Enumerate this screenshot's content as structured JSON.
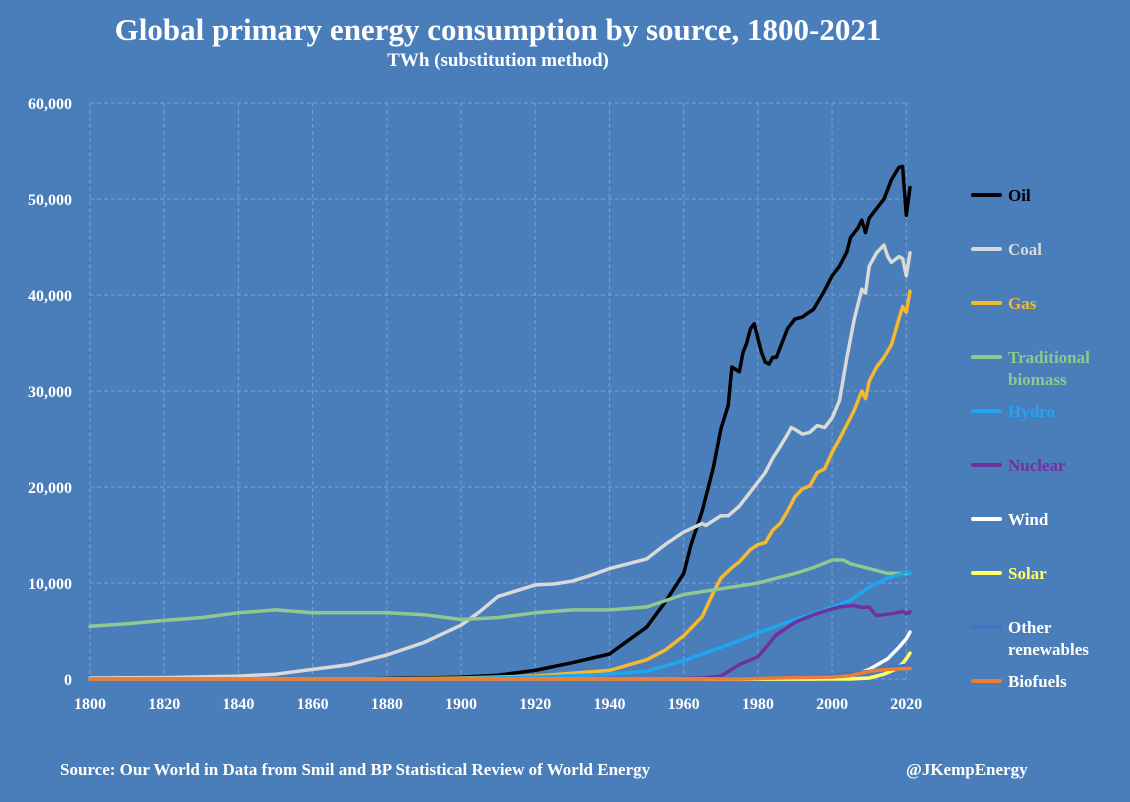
{
  "title": "Global primary energy consumption by source, 1800-2021",
  "subtitle": "TWh (substitution method)",
  "source": "Source: Our World in Data from Smil and BP Statistical Review of World Energy",
  "handle": "@JKempEnergy",
  "colors": {
    "background": "#4a7ebb",
    "grid": "#7aa0d2",
    "text": "#ffffff"
  },
  "chart_data": {
    "type": "line",
    "xlim": [
      1800,
      2021
    ],
    "ylim": [
      0,
      60000
    ],
    "x_ticks": [
      1800,
      1820,
      1840,
      1860,
      1880,
      1900,
      1920,
      1940,
      1960,
      1980,
      2000,
      2020
    ],
    "y_ticks": [
      0,
      10000,
      20000,
      30000,
      40000,
      50000,
      60000
    ],
    "y_tick_labels": [
      "0",
      "10,000",
      "20,000",
      "30,000",
      "40,000",
      "50,000",
      "60,000"
    ],
    "grid": true,
    "legend_position": "right",
    "series": [
      {
        "name": "Oil",
        "legend_lines": [
          "Oil"
        ],
        "color": "#000000",
        "label_color": "#000000",
        "points": [
          [
            1800,
            0
          ],
          [
            1870,
            0
          ],
          [
            1880,
            50
          ],
          [
            1890,
            100
          ],
          [
            1900,
            200
          ],
          [
            1910,
            400
          ],
          [
            1920,
            900
          ],
          [
            1930,
            1700
          ],
          [
            1940,
            2600
          ],
          [
            1945,
            4000
          ],
          [
            1950,
            5400
          ],
          [
            1955,
            8000
          ],
          [
            1960,
            11000
          ],
          [
            1962,
            14000
          ],
          [
            1965,
            17500
          ],
          [
            1968,
            22000
          ],
          [
            1970,
            26000
          ],
          [
            1972,
            28500
          ],
          [
            1973,
            32500
          ],
          [
            1975,
            32000
          ],
          [
            1976,
            34000
          ],
          [
            1977,
            35000
          ],
          [
            1978,
            36500
          ],
          [
            1979,
            37000
          ],
          [
            1980,
            35500
          ],
          [
            1981,
            34000
          ],
          [
            1982,
            33000
          ],
          [
            1983,
            32800
          ],
          [
            1984,
            33500
          ],
          [
            1985,
            33500
          ],
          [
            1986,
            34500
          ],
          [
            1988,
            36500
          ],
          [
            1990,
            37500
          ],
          [
            1992,
            37700
          ],
          [
            1993,
            38000
          ],
          [
            1995,
            38500
          ],
          [
            1998,
            40500
          ],
          [
            2000,
            42000
          ],
          [
            2002,
            43000
          ],
          [
            2004,
            44500
          ],
          [
            2005,
            46000
          ],
          [
            2007,
            47000
          ],
          [
            2008,
            47800
          ],
          [
            2009,
            46500
          ],
          [
            2010,
            48000
          ],
          [
            2012,
            49000
          ],
          [
            2014,
            50000
          ],
          [
            2016,
            52000
          ],
          [
            2018,
            53300
          ],
          [
            2019,
            53400
          ],
          [
            2020,
            48300
          ],
          [
            2021,
            51200
          ]
        ]
      },
      {
        "name": "Coal",
        "legend_lines": [
          "Coal"
        ],
        "color": "#d9d9d9",
        "label_color": "#d9d9d9",
        "points": [
          [
            1800,
            100
          ],
          [
            1820,
            150
          ],
          [
            1840,
            300
          ],
          [
            1850,
            500
          ],
          [
            1860,
            1000
          ],
          [
            1870,
            1500
          ],
          [
            1880,
            2500
          ],
          [
            1890,
            3800
          ],
          [
            1900,
            5600
          ],
          [
            1905,
            7000
          ],
          [
            1910,
            8600
          ],
          [
            1915,
            9200
          ],
          [
            1920,
            9800
          ],
          [
            1925,
            9900
          ],
          [
            1930,
            10200
          ],
          [
            1935,
            10800
          ],
          [
            1940,
            11500
          ],
          [
            1945,
            12000
          ],
          [
            1950,
            12500
          ],
          [
            1955,
            14000
          ],
          [
            1960,
            15300
          ],
          [
            1965,
            16200
          ],
          [
            1966,
            16000
          ],
          [
            1968,
            16500
          ],
          [
            1970,
            17000
          ],
          [
            1972,
            17000
          ],
          [
            1975,
            18000
          ],
          [
            1978,
            19500
          ],
          [
            1980,
            20500
          ],
          [
            1982,
            21500
          ],
          [
            1984,
            23000
          ],
          [
            1986,
            24200
          ],
          [
            1988,
            25500
          ],
          [
            1989,
            26200
          ],
          [
            1990,
            26000
          ],
          [
            1992,
            25500
          ],
          [
            1994,
            25700
          ],
          [
            1996,
            26400
          ],
          [
            1998,
            26200
          ],
          [
            2000,
            27200
          ],
          [
            2002,
            29000
          ],
          [
            2004,
            33500
          ],
          [
            2006,
            37500
          ],
          [
            2008,
            40600
          ],
          [
            2009,
            40200
          ],
          [
            2010,
            43000
          ],
          [
            2012,
            44400
          ],
          [
            2014,
            45200
          ],
          [
            2015,
            44000
          ],
          [
            2016,
            43400
          ],
          [
            2018,
            44000
          ],
          [
            2019,
            43800
          ],
          [
            2020,
            42000
          ],
          [
            2021,
            44400
          ]
        ]
      },
      {
        "name": "Gas",
        "legend_lines": [
          "Gas"
        ],
        "color": "#f5b92e",
        "label_color": "#f5b92e",
        "points": [
          [
            1800,
            0
          ],
          [
            1880,
            0
          ],
          [
            1900,
            100
          ],
          [
            1920,
            300
          ],
          [
            1940,
            900
          ],
          [
            1950,
            2000
          ],
          [
            1955,
            3000
          ],
          [
            1960,
            4500
          ],
          [
            1965,
            6500
          ],
          [
            1968,
            9000
          ],
          [
            1970,
            10500
          ],
          [
            1973,
            11600
          ],
          [
            1975,
            12200
          ],
          [
            1978,
            13500
          ],
          [
            1980,
            14000
          ],
          [
            1982,
            14200
          ],
          [
            1984,
            15500
          ],
          [
            1986,
            16200
          ],
          [
            1988,
            17500
          ],
          [
            1990,
            19000
          ],
          [
            1992,
            19800
          ],
          [
            1994,
            20100
          ],
          [
            1996,
            21500
          ],
          [
            1998,
            21900
          ],
          [
            2000,
            23600
          ],
          [
            2002,
            25000
          ],
          [
            2004,
            26500
          ],
          [
            2006,
            28000
          ],
          [
            2008,
            30000
          ],
          [
            2009,
            29200
          ],
          [
            2010,
            31000
          ],
          [
            2012,
            32500
          ],
          [
            2014,
            33500
          ],
          [
            2016,
            34800
          ],
          [
            2018,
            37500
          ],
          [
            2019,
            38800
          ],
          [
            2020,
            38200
          ],
          [
            2021,
            40400
          ]
        ]
      },
      {
        "name": "Traditional biomass",
        "legend_lines": [
          "Traditional",
          "biomass"
        ],
        "color": "#8fc98f",
        "label_color": "#8fc98f",
        "points": [
          [
            1800,
            5500
          ],
          [
            1810,
            5750
          ],
          [
            1820,
            6100
          ],
          [
            1830,
            6400
          ],
          [
            1840,
            6900
          ],
          [
            1850,
            7200
          ],
          [
            1860,
            6900
          ],
          [
            1870,
            6900
          ],
          [
            1880,
            6900
          ],
          [
            1890,
            6700
          ],
          [
            1900,
            6200
          ],
          [
            1910,
            6400
          ],
          [
            1920,
            6900
          ],
          [
            1930,
            7200
          ],
          [
            1940,
            7200
          ],
          [
            1950,
            7500
          ],
          [
            1960,
            8800
          ],
          [
            1970,
            9400
          ],
          [
            1980,
            10000
          ],
          [
            1990,
            11000
          ],
          [
            1995,
            11600
          ],
          [
            2000,
            12400
          ],
          [
            2003,
            12400
          ],
          [
            2005,
            12000
          ],
          [
            2010,
            11500
          ],
          [
            2015,
            11000
          ],
          [
            2021,
            11000
          ]
        ]
      },
      {
        "name": "Hydro",
        "legend_lines": [
          "Hydro"
        ],
        "color": "#1ea7f0",
        "label_color": "#1ea7f0",
        "points": [
          [
            1800,
            0
          ],
          [
            1890,
            0
          ],
          [
            1900,
            50
          ],
          [
            1920,
            200
          ],
          [
            1940,
            500
          ],
          [
            1950,
            800
          ],
          [
            1960,
            1900
          ],
          [
            1970,
            3300
          ],
          [
            1975,
            4000
          ],
          [
            1980,
            4800
          ],
          [
            1985,
            5500
          ],
          [
            1990,
            6200
          ],
          [
            1995,
            6800
          ],
          [
            2000,
            7500
          ],
          [
            2005,
            8200
          ],
          [
            2010,
            9600
          ],
          [
            2015,
            10500
          ],
          [
            2019,
            11000
          ],
          [
            2020,
            11200
          ],
          [
            2021,
            11000
          ]
        ]
      },
      {
        "name": "Nuclear",
        "legend_lines": [
          "Nuclear"
        ],
        "color": "#7030a0",
        "label_color": "#7030a0",
        "points": [
          [
            1800,
            0
          ],
          [
            1955,
            0
          ],
          [
            1965,
            100
          ],
          [
            1970,
            300
          ],
          [
            1975,
            1500
          ],
          [
            1980,
            2300
          ],
          [
            1985,
            4600
          ],
          [
            1990,
            5900
          ],
          [
            1995,
            6700
          ],
          [
            2000,
            7300
          ],
          [
            2002,
            7500
          ],
          [
            2004,
            7600
          ],
          [
            2006,
            7650
          ],
          [
            2008,
            7450
          ],
          [
            2010,
            7500
          ],
          [
            2011,
            7000
          ],
          [
            2012,
            6600
          ],
          [
            2014,
            6700
          ],
          [
            2016,
            6800
          ],
          [
            2018,
            6950
          ],
          [
            2019,
            7050
          ],
          [
            2020,
            6800
          ],
          [
            2021,
            7000
          ]
        ]
      },
      {
        "name": "Wind",
        "legend_lines": [
          "Wind"
        ],
        "color": "#ffffff",
        "label_color": "#ffffff",
        "points": [
          [
            1800,
            0
          ],
          [
            1995,
            0
          ],
          [
            2000,
            100
          ],
          [
            2005,
            300
          ],
          [
            2010,
            1000
          ],
          [
            2015,
            2100
          ],
          [
            2018,
            3300
          ],
          [
            2020,
            4200
          ],
          [
            2021,
            4900
          ]
        ]
      },
      {
        "name": "Solar",
        "legend_lines": [
          "Solar"
        ],
        "color": "#ffff66",
        "label_color": "#ffff66",
        "points": [
          [
            1800,
            0
          ],
          [
            2005,
            0
          ],
          [
            2010,
            100
          ],
          [
            2014,
            500
          ],
          [
            2017,
            1000
          ],
          [
            2019,
            1600
          ],
          [
            2020,
            2100
          ],
          [
            2021,
            2700
          ]
        ]
      },
      {
        "name": "Other renewables",
        "legend_lines": [
          "Other",
          "renewables"
        ],
        "color": "#4472c4",
        "label_color": "#ffffff",
        "points": [
          [
            1800,
            0
          ],
          [
            1965,
            0
          ],
          [
            1970,
            50
          ],
          [
            1980,
            100
          ],
          [
            1990,
            200
          ],
          [
            2000,
            400
          ],
          [
            2010,
            800
          ],
          [
            2021,
            1500
          ]
        ]
      },
      {
        "name": "Biofuels",
        "legend_lines": [
          "Biofuels"
        ],
        "color": "#ed7d31",
        "label_color": "#ffffff",
        "points": [
          [
            1800,
            0
          ],
          [
            1975,
            0
          ],
          [
            1980,
            50
          ],
          [
            1990,
            150
          ],
          [
            2000,
            200
          ],
          [
            2005,
            350
          ],
          [
            2010,
            800
          ],
          [
            2015,
            1000
          ],
          [
            2021,
            1100
          ]
        ]
      }
    ]
  }
}
